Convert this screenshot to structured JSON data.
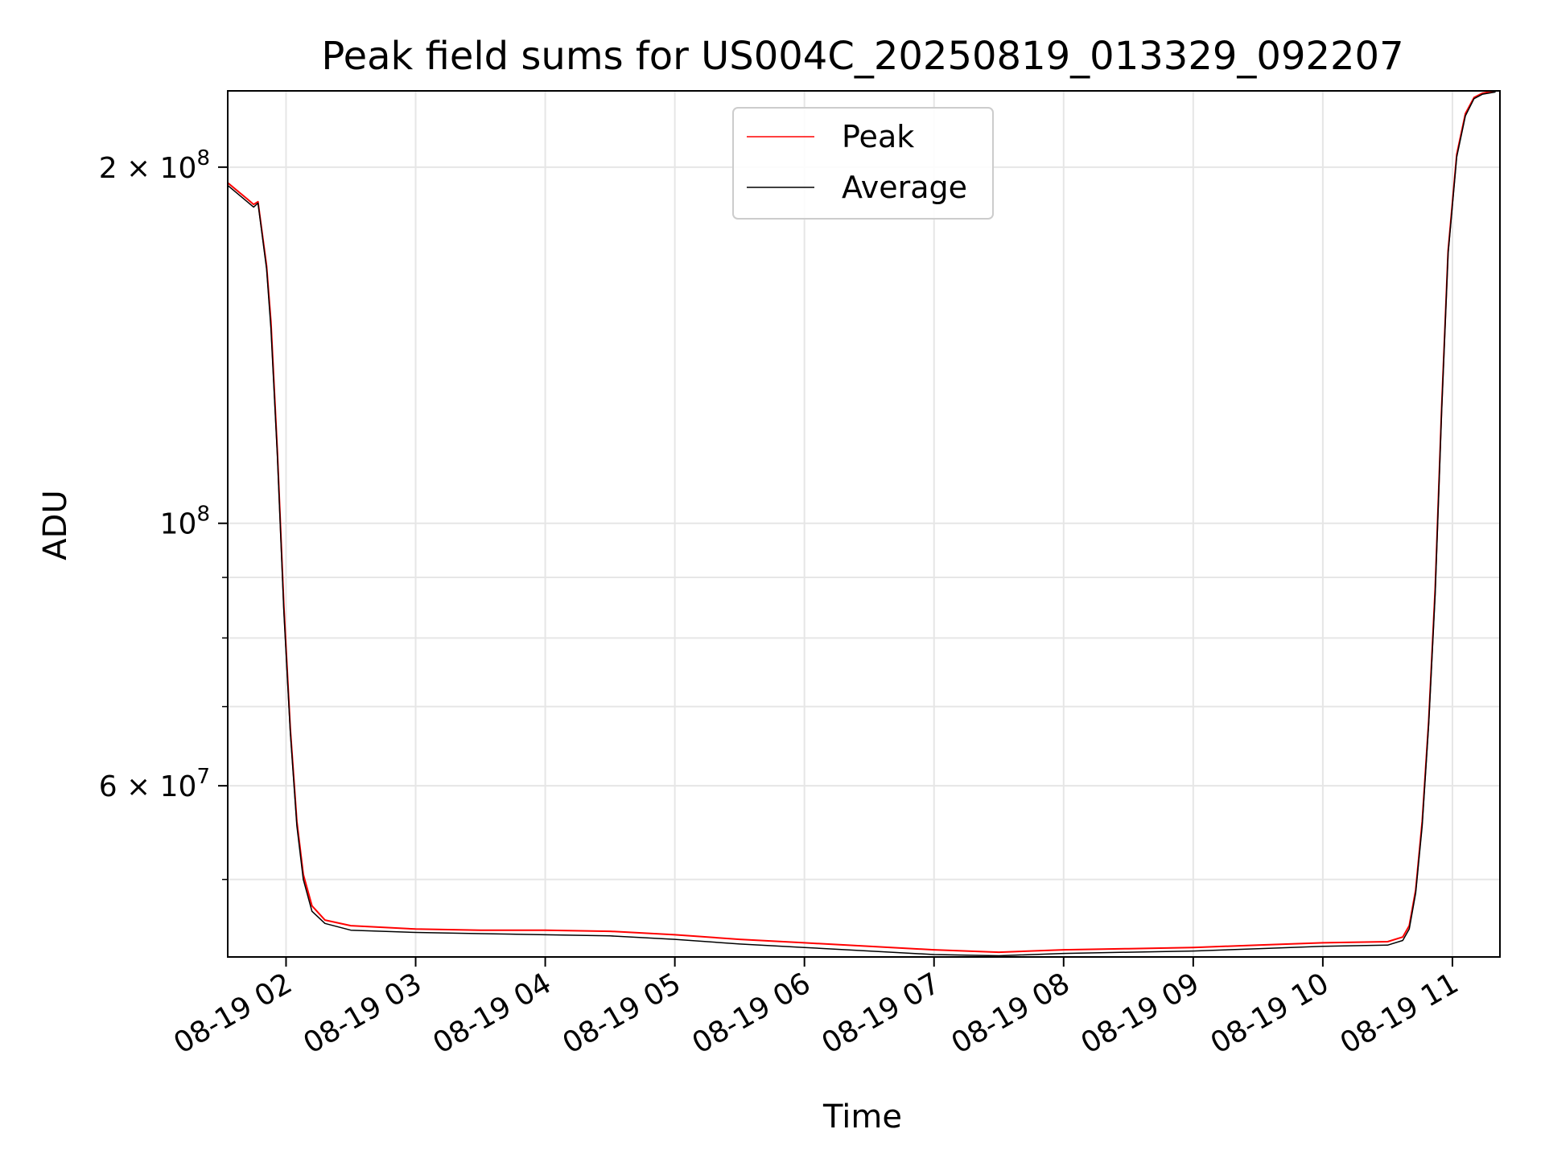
{
  "chart_data": {
    "type": "line",
    "title": "Peak field sums for US004C_20250819_013329_092207",
    "xlabel": "Time",
    "ylabel": "ADU",
    "y_scale": "log",
    "ylim": [
      43000000,
      232000000
    ],
    "xlim": [
      "2025-08-19T01:33",
      "2025-08-19T11:22"
    ],
    "grid": true,
    "legend_position": "upper center",
    "x_ticks": [
      {
        "t": "2025-08-19T02:00",
        "label": "08-19 02"
      },
      {
        "t": "2025-08-19T03:00",
        "label": "08-19 03"
      },
      {
        "t": "2025-08-19T04:00",
        "label": "08-19 04"
      },
      {
        "t": "2025-08-19T05:00",
        "label": "08-19 05"
      },
      {
        "t": "2025-08-19T06:00",
        "label": "08-19 06"
      },
      {
        "t": "2025-08-19T07:00",
        "label": "08-19 07"
      },
      {
        "t": "2025-08-19T08:00",
        "label": "08-19 08"
      },
      {
        "t": "2025-08-19T09:00",
        "label": "08-19 09"
      },
      {
        "t": "2025-08-19T10:00",
        "label": "08-19 10"
      },
      {
        "t": "2025-08-19T11:00",
        "label": "08-19 11"
      }
    ],
    "y_major_ticks": [
      {
        "value": 60000000,
        "mantissa": "6",
        "exponent": "7"
      },
      {
        "value": 100000000,
        "mantissa": "",
        "exponent": "8"
      },
      {
        "value": 200000000,
        "mantissa": "2",
        "exponent": "8"
      }
    ],
    "y_minor_ticks": [
      50000000,
      70000000,
      80000000,
      90000000
    ],
    "series": [
      {
        "name": "Peak",
        "color": "#ff0000",
        "points": [
          [
            "2025-08-19T01:33",
            194000000
          ],
          [
            "2025-08-19T01:42",
            188000000
          ],
          [
            "2025-08-19T01:45",
            186000000
          ],
          [
            "2025-08-19T01:47",
            187000000
          ],
          [
            "2025-08-19T01:51",
            165000000
          ],
          [
            "2025-08-19T01:53",
            148000000
          ],
          [
            "2025-08-19T01:56",
            115000000
          ],
          [
            "2025-08-19T01:59",
            85000000
          ],
          [
            "2025-08-19T02:02",
            67000000
          ],
          [
            "2025-08-19T02:05",
            56000000
          ],
          [
            "2025-08-19T02:08",
            50500000
          ],
          [
            "2025-08-19T02:12",
            47500000
          ],
          [
            "2025-08-19T02:18",
            46200000
          ],
          [
            "2025-08-19T02:30",
            45700000
          ],
          [
            "2025-08-19T03:00",
            45400000
          ],
          [
            "2025-08-19T03:30",
            45300000
          ],
          [
            "2025-08-19T04:00",
            45300000
          ],
          [
            "2025-08-19T04:30",
            45200000
          ],
          [
            "2025-08-19T05:00",
            44900000
          ],
          [
            "2025-08-19T05:30",
            44500000
          ],
          [
            "2025-08-19T06:00",
            44200000
          ],
          [
            "2025-08-19T06:30",
            43900000
          ],
          [
            "2025-08-19T07:00",
            43600000
          ],
          [
            "2025-08-19T07:30",
            43400000
          ],
          [
            "2025-08-19T08:00",
            43600000
          ],
          [
            "2025-08-19T08:30",
            43700000
          ],
          [
            "2025-08-19T09:00",
            43800000
          ],
          [
            "2025-08-19T09:30",
            44000000
          ],
          [
            "2025-08-19T10:00",
            44200000
          ],
          [
            "2025-08-19T10:30",
            44300000
          ],
          [
            "2025-08-19T10:37",
            44700000
          ],
          [
            "2025-08-19T10:40",
            45700000
          ],
          [
            "2025-08-19T10:43",
            49000000
          ],
          [
            "2025-08-19T10:46",
            56000000
          ],
          [
            "2025-08-19T10:49",
            68000000
          ],
          [
            "2025-08-19T10:52",
            88000000
          ],
          [
            "2025-08-19T10:55",
            125000000
          ],
          [
            "2025-08-19T10:58",
            170000000
          ],
          [
            "2025-08-19T11:02",
            205000000
          ],
          [
            "2025-08-19T11:06",
            222000000
          ],
          [
            "2025-08-19T11:10",
            229000000
          ],
          [
            "2025-08-19T11:14",
            231000000
          ],
          [
            "2025-08-19T11:20",
            232000000
          ]
        ]
      },
      {
        "name": "Average",
        "color": "#000000",
        "points": [
          [
            "2025-08-19T01:33",
            193000000
          ],
          [
            "2025-08-19T01:42",
            187000000
          ],
          [
            "2025-08-19T01:45",
            185000000
          ],
          [
            "2025-08-19T01:47",
            186500000
          ],
          [
            "2025-08-19T01:51",
            164000000
          ],
          [
            "2025-08-19T01:53",
            146000000
          ],
          [
            "2025-08-19T01:56",
            114000000
          ],
          [
            "2025-08-19T01:59",
            84000000
          ],
          [
            "2025-08-19T02:02",
            66500000
          ],
          [
            "2025-08-19T02:05",
            55500000
          ],
          [
            "2025-08-19T02:08",
            50000000
          ],
          [
            "2025-08-19T02:12",
            47000000
          ],
          [
            "2025-08-19T02:18",
            45900000
          ],
          [
            "2025-08-19T02:30",
            45300000
          ],
          [
            "2025-08-19T03:00",
            45100000
          ],
          [
            "2025-08-19T03:30",
            45000000
          ],
          [
            "2025-08-19T04:00",
            44900000
          ],
          [
            "2025-08-19T04:30",
            44800000
          ],
          [
            "2025-08-19T05:00",
            44500000
          ],
          [
            "2025-08-19T05:30",
            44100000
          ],
          [
            "2025-08-19T06:00",
            43800000
          ],
          [
            "2025-08-19T06:30",
            43500000
          ],
          [
            "2025-08-19T07:00",
            43200000
          ],
          [
            "2025-08-19T07:30",
            43100000
          ],
          [
            "2025-08-19T08:00",
            43300000
          ],
          [
            "2025-08-19T08:30",
            43400000
          ],
          [
            "2025-08-19T09:00",
            43500000
          ],
          [
            "2025-08-19T09:30",
            43700000
          ],
          [
            "2025-08-19T10:00",
            43900000
          ],
          [
            "2025-08-19T10:30",
            44000000
          ],
          [
            "2025-08-19T10:37",
            44400000
          ],
          [
            "2025-08-19T10:40",
            45400000
          ],
          [
            "2025-08-19T10:43",
            48700000
          ],
          [
            "2025-08-19T10:46",
            55500000
          ],
          [
            "2025-08-19T10:49",
            67500000
          ],
          [
            "2025-08-19T10:52",
            87000000
          ],
          [
            "2025-08-19T10:55",
            124000000
          ],
          [
            "2025-08-19T10:58",
            169000000
          ],
          [
            "2025-08-19T11:02",
            204000000
          ],
          [
            "2025-08-19T11:06",
            221000000
          ],
          [
            "2025-08-19T11:10",
            228500000
          ],
          [
            "2025-08-19T11:14",
            230500000
          ],
          [
            "2025-08-19T11:20",
            231500000
          ]
        ]
      }
    ]
  }
}
